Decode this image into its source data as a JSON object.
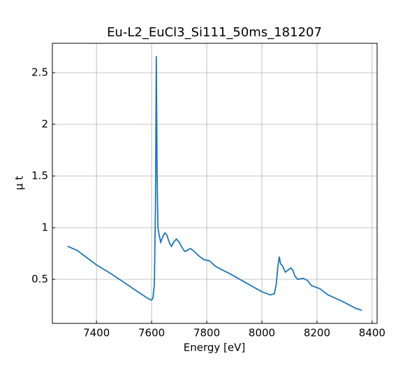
{
  "chart_data": {
    "type": "line",
    "title": "Eu-L2_EuCl3_Si111_50ms_181207",
    "xlabel": "Energy [eV]",
    "ylabel": "μ t",
    "xlim": [
      7240,
      8418
    ],
    "ylim": [
      0.074,
      2.784
    ],
    "xticks": [
      7400,
      7600,
      7800,
      8000,
      8200,
      8400
    ],
    "yticks": [
      0.5,
      1.0,
      1.5,
      2.0,
      2.5
    ],
    "grid": true,
    "series": [
      {
        "color": "#1f77b4",
        "x": [
          7295,
          7330,
          7370,
          7400,
          7450,
          7500,
          7550,
          7590,
          7600,
          7605,
          7610,
          7614,
          7617,
          7620,
          7623,
          7628,
          7633,
          7640,
          7648,
          7655,
          7665,
          7672,
          7680,
          7690,
          7700,
          7710,
          7720,
          7730,
          7740,
          7755,
          7770,
          7790,
          7810,
          7830,
          7850,
          7880,
          7920,
          7960,
          8000,
          8030,
          8045,
          8052,
          8058,
          8063,
          8068,
          8075,
          8085,
          8095,
          8105,
          8112,
          8120,
          8130,
          8150,
          8165,
          8180,
          8210,
          8240,
          8290,
          8340,
          8363
        ],
        "values": [
          0.82,
          0.78,
          0.7,
          0.64,
          0.56,
          0.47,
          0.38,
          0.31,
          0.3,
          0.32,
          0.45,
          1.2,
          2.66,
          1.5,
          1.0,
          0.92,
          0.86,
          0.91,
          0.95,
          0.93,
          0.85,
          0.82,
          0.86,
          0.89,
          0.86,
          0.81,
          0.77,
          0.78,
          0.8,
          0.77,
          0.73,
          0.69,
          0.68,
          0.63,
          0.6,
          0.56,
          0.5,
          0.44,
          0.38,
          0.35,
          0.36,
          0.45,
          0.62,
          0.72,
          0.65,
          0.63,
          0.57,
          0.59,
          0.61,
          0.59,
          0.53,
          0.5,
          0.51,
          0.49,
          0.44,
          0.41,
          0.35,
          0.29,
          0.22,
          0.2
        ]
      }
    ]
  }
}
